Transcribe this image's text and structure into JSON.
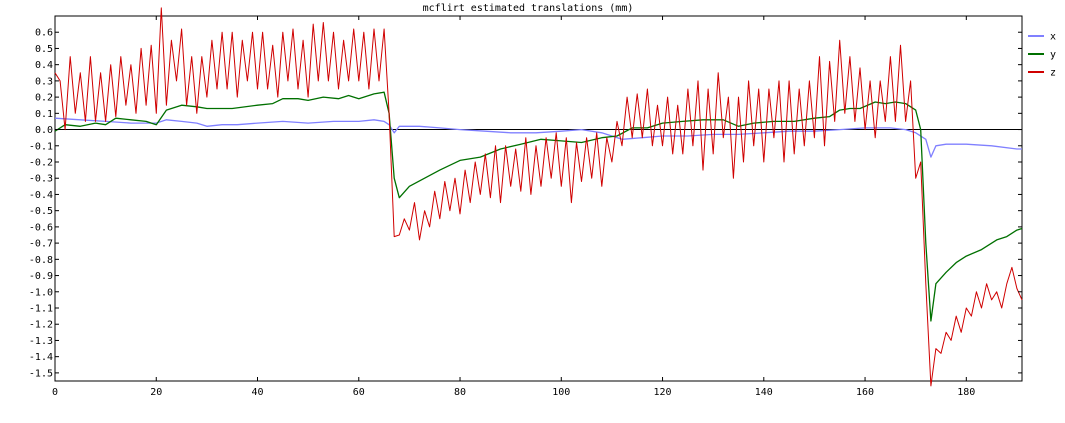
{
  "chart_data": {
    "type": "line",
    "title": "mcflirt estimated translations (mm)",
    "xlabel": "",
    "ylabel": "",
    "xlim": [
      0,
      191
    ],
    "ylim": [
      -1.55,
      0.7
    ],
    "xticks": [
      0,
      20,
      40,
      60,
      80,
      100,
      120,
      140,
      160,
      180
    ],
    "yticks": [
      0.6,
      0.5,
      0.4,
      0.3,
      0.2,
      0.1,
      0.0,
      -0.1,
      -0.2,
      -0.3,
      -0.4,
      -0.5,
      -0.6,
      -0.7,
      -0.8,
      -0.9,
      -1.0,
      -1.1,
      -1.2,
      -1.3,
      -1.4,
      -1.5
    ],
    "ytick_labels": [
      "0.6",
      "0.5",
      "0.4",
      "0.3",
      "0.2",
      "0.1",
      "0.0",
      "-0.1",
      "-0.2",
      "-0.3",
      "-0.4",
      "-0.5",
      "-0.6",
      "-0.7",
      "-0.8",
      "-0.9",
      "-1.0",
      "-1.1",
      "-1.2",
      "-1.3",
      "-1.4",
      "-1.5"
    ],
    "zero_line": true,
    "legend_position": "right",
    "series": [
      {
        "name": "x",
        "color": "#8080ff",
        "points": [
          [
            0,
            0.07
          ],
          [
            5,
            0.06
          ],
          [
            10,
            0.05
          ],
          [
            15,
            0.04
          ],
          [
            20,
            0.04
          ],
          [
            22,
            0.06
          ],
          [
            25,
            0.05
          ],
          [
            28,
            0.04
          ],
          [
            30,
            0.02
          ],
          [
            33,
            0.03
          ],
          [
            36,
            0.03
          ],
          [
            40,
            0.04
          ],
          [
            45,
            0.05
          ],
          [
            50,
            0.04
          ],
          [
            55,
            0.05
          ],
          [
            60,
            0.05
          ],
          [
            63,
            0.06
          ],
          [
            65,
            0.05
          ],
          [
            66,
            0.03
          ],
          [
            67,
            -0.02
          ],
          [
            68,
            0.02
          ],
          [
            72,
            0.02
          ],
          [
            76,
            0.01
          ],
          [
            80,
            0.0
          ],
          [
            85,
            -0.01
          ],
          [
            90,
            -0.02
          ],
          [
            95,
            -0.02
          ],
          [
            100,
            -0.01
          ],
          [
            104,
            0.0
          ],
          [
            108,
            -0.02
          ],
          [
            112,
            -0.06
          ],
          [
            116,
            -0.05
          ],
          [
            120,
            -0.04
          ],
          [
            125,
            -0.04
          ],
          [
            130,
            -0.03
          ],
          [
            135,
            -0.03
          ],
          [
            140,
            -0.02
          ],
          [
            145,
            -0.01
          ],
          [
            150,
            -0.01
          ],
          [
            155,
            0.0
          ],
          [
            160,
            0.01
          ],
          [
            165,
            0.01
          ],
          [
            168,
            0.0
          ],
          [
            170,
            -0.02
          ],
          [
            172,
            -0.06
          ],
          [
            173,
            -0.17
          ],
          [
            174,
            -0.1
          ],
          [
            176,
            -0.09
          ],
          [
            180,
            -0.09
          ],
          [
            185,
            -0.1
          ],
          [
            190,
            -0.12
          ],
          [
            191,
            -0.12
          ]
        ]
      },
      {
        "name": "y",
        "color": "#007000",
        "points": [
          [
            0,
            -0.01
          ],
          [
            2,
            0.03
          ],
          [
            5,
            0.02
          ],
          [
            8,
            0.04
          ],
          [
            10,
            0.03
          ],
          [
            12,
            0.07
          ],
          [
            15,
            0.06
          ],
          [
            18,
            0.05
          ],
          [
            20,
            0.03
          ],
          [
            22,
            0.12
          ],
          [
            25,
            0.15
          ],
          [
            28,
            0.14
          ],
          [
            30,
            0.13
          ],
          [
            35,
            0.13
          ],
          [
            40,
            0.15
          ],
          [
            43,
            0.16
          ],
          [
            45,
            0.19
          ],
          [
            48,
            0.19
          ],
          [
            50,
            0.18
          ],
          [
            53,
            0.2
          ],
          [
            56,
            0.19
          ],
          [
            58,
            0.21
          ],
          [
            60,
            0.19
          ],
          [
            63,
            0.22
          ],
          [
            65,
            0.23
          ],
          [
            66,
            0.1
          ],
          [
            67,
            -0.3
          ],
          [
            68,
            -0.42
          ],
          [
            70,
            -0.35
          ],
          [
            73,
            -0.3
          ],
          [
            76,
            -0.25
          ],
          [
            80,
            -0.19
          ],
          [
            84,
            -0.17
          ],
          [
            88,
            -0.12
          ],
          [
            92,
            -0.09
          ],
          [
            96,
            -0.06
          ],
          [
            100,
            -0.07
          ],
          [
            104,
            -0.08
          ],
          [
            108,
            -0.05
          ],
          [
            111,
            -0.04
          ],
          [
            114,
            0.01
          ],
          [
            117,
            0.01
          ],
          [
            120,
            0.04
          ],
          [
            124,
            0.05
          ],
          [
            128,
            0.06
          ],
          [
            132,
            0.06
          ],
          [
            135,
            0.02
          ],
          [
            138,
            0.04
          ],
          [
            142,
            0.05
          ],
          [
            146,
            0.05
          ],
          [
            150,
            0.07
          ],
          [
            153,
            0.08
          ],
          [
            155,
            0.12
          ],
          [
            157,
            0.13
          ],
          [
            159,
            0.13
          ],
          [
            162,
            0.17
          ],
          [
            164,
            0.16
          ],
          [
            166,
            0.17
          ],
          [
            168,
            0.16
          ],
          [
            170,
            0.12
          ],
          [
            171,
            0.0
          ],
          [
            172,
            -0.7
          ],
          [
            173,
            -1.18
          ],
          [
            174,
            -0.95
          ],
          [
            176,
            -0.88
          ],
          [
            178,
            -0.82
          ],
          [
            180,
            -0.78
          ],
          [
            183,
            -0.74
          ],
          [
            186,
            -0.68
          ],
          [
            188,
            -0.66
          ],
          [
            190,
            -0.62
          ],
          [
            191,
            -0.61
          ]
        ]
      },
      {
        "name": "z",
        "color": "#d00000",
        "points": [
          [
            0,
            0.35
          ],
          [
            1,
            0.3
          ],
          [
            2,
            0.0
          ],
          [
            3,
            0.45
          ],
          [
            4,
            0.1
          ],
          [
            5,
            0.35
          ],
          [
            6,
            0.05
          ],
          [
            7,
            0.45
          ],
          [
            8,
            0.05
          ],
          [
            9,
            0.35
          ],
          [
            10,
            0.05
          ],
          [
            11,
            0.4
          ],
          [
            12,
            0.08
          ],
          [
            13,
            0.45
          ],
          [
            14,
            0.15
          ],
          [
            15,
            0.4
          ],
          [
            16,
            0.1
          ],
          [
            17,
            0.5
          ],
          [
            18,
            0.15
          ],
          [
            19,
            0.52
          ],
          [
            20,
            0.1
          ],
          [
            21,
            0.75
          ],
          [
            22,
            0.15
          ],
          [
            23,
            0.55
          ],
          [
            24,
            0.3
          ],
          [
            25,
            0.62
          ],
          [
            26,
            0.15
          ],
          [
            27,
            0.45
          ],
          [
            28,
            0.1
          ],
          [
            29,
            0.45
          ],
          [
            30,
            0.2
          ],
          [
            31,
            0.55
          ],
          [
            32,
            0.25
          ],
          [
            33,
            0.6
          ],
          [
            34,
            0.25
          ],
          [
            35,
            0.6
          ],
          [
            36,
            0.2
          ],
          [
            37,
            0.55
          ],
          [
            38,
            0.3
          ],
          [
            39,
            0.6
          ],
          [
            40,
            0.25
          ],
          [
            41,
            0.6
          ],
          [
            42,
            0.25
          ],
          [
            43,
            0.52
          ],
          [
            44,
            0.2
          ],
          [
            45,
            0.6
          ],
          [
            46,
            0.3
          ],
          [
            47,
            0.62
          ],
          [
            48,
            0.25
          ],
          [
            49,
            0.55
          ],
          [
            50,
            0.2
          ],
          [
            51,
            0.65
          ],
          [
            52,
            0.3
          ],
          [
            53,
            0.66
          ],
          [
            54,
            0.3
          ],
          [
            55,
            0.6
          ],
          [
            56,
            0.25
          ],
          [
            57,
            0.55
          ],
          [
            58,
            0.3
          ],
          [
            59,
            0.62
          ],
          [
            60,
            0.3
          ],
          [
            61,
            0.6
          ],
          [
            62,
            0.25
          ],
          [
            63,
            0.62
          ],
          [
            64,
            0.3
          ],
          [
            65,
            0.62
          ],
          [
            66,
            0.1
          ],
          [
            67,
            -0.66
          ],
          [
            68,
            -0.65
          ],
          [
            69,
            -0.55
          ],
          [
            70,
            -0.62
          ],
          [
            71,
            -0.45
          ],
          [
            72,
            -0.68
          ],
          [
            73,
            -0.5
          ],
          [
            74,
            -0.6
          ],
          [
            75,
            -0.38
          ],
          [
            76,
            -0.55
          ],
          [
            77,
            -0.32
          ],
          [
            78,
            -0.5
          ],
          [
            79,
            -0.3
          ],
          [
            80,
            -0.52
          ],
          [
            81,
            -0.25
          ],
          [
            82,
            -0.45
          ],
          [
            83,
            -0.2
          ],
          [
            84,
            -0.4
          ],
          [
            85,
            -0.15
          ],
          [
            86,
            -0.42
          ],
          [
            87,
            -0.1
          ],
          [
            88,
            -0.45
          ],
          [
            89,
            -0.1
          ],
          [
            90,
            -0.35
          ],
          [
            91,
            -0.12
          ],
          [
            92,
            -0.38
          ],
          [
            93,
            -0.05
          ],
          [
            94,
            -0.4
          ],
          [
            95,
            -0.1
          ],
          [
            96,
            -0.35
          ],
          [
            97,
            -0.05
          ],
          [
            98,
            -0.3
          ],
          [
            99,
            -0.02
          ],
          [
            100,
            -0.35
          ],
          [
            101,
            -0.05
          ],
          [
            102,
            -0.45
          ],
          [
            103,
            -0.08
          ],
          [
            104,
            -0.32
          ],
          [
            105,
            -0.05
          ],
          [
            106,
            -0.3
          ],
          [
            107,
            -0.02
          ],
          [
            108,
            -0.35
          ],
          [
            109,
            -0.05
          ],
          [
            110,
            -0.2
          ],
          [
            111,
            0.05
          ],
          [
            112,
            -0.1
          ],
          [
            113,
            0.2
          ],
          [
            114,
            -0.05
          ],
          [
            115,
            0.22
          ],
          [
            116,
            -0.05
          ],
          [
            117,
            0.25
          ],
          [
            118,
            -0.1
          ],
          [
            119,
            0.15
          ],
          [
            120,
            -0.1
          ],
          [
            121,
            0.2
          ],
          [
            122,
            -0.15
          ],
          [
            123,
            0.15
          ],
          [
            124,
            -0.15
          ],
          [
            125,
            0.25
          ],
          [
            126,
            -0.1
          ],
          [
            127,
            0.3
          ],
          [
            128,
            -0.25
          ],
          [
            129,
            0.25
          ],
          [
            130,
            -0.15
          ],
          [
            131,
            0.35
          ],
          [
            132,
            -0.05
          ],
          [
            133,
            0.2
          ],
          [
            134,
            -0.3
          ],
          [
            135,
            0.2
          ],
          [
            136,
            -0.2
          ],
          [
            137,
            0.3
          ],
          [
            138,
            -0.1
          ],
          [
            139,
            0.25
          ],
          [
            140,
            -0.2
          ],
          [
            141,
            0.25
          ],
          [
            142,
            -0.05
          ],
          [
            143,
            0.3
          ],
          [
            144,
            -0.2
          ],
          [
            145,
            0.3
          ],
          [
            146,
            -0.15
          ],
          [
            147,
            0.25
          ],
          [
            148,
            -0.1
          ],
          [
            149,
            0.3
          ],
          [
            150,
            -0.05
          ],
          [
            151,
            0.45
          ],
          [
            152,
            -0.1
          ],
          [
            153,
            0.42
          ],
          [
            154,
            0.05
          ],
          [
            155,
            0.55
          ],
          [
            156,
            0.1
          ],
          [
            157,
            0.45
          ],
          [
            158,
            0.05
          ],
          [
            159,
            0.38
          ],
          [
            160,
            0.0
          ],
          [
            161,
            0.3
          ],
          [
            162,
            -0.05
          ],
          [
            163,
            0.3
          ],
          [
            164,
            0.05
          ],
          [
            165,
            0.45
          ],
          [
            166,
            0.05
          ],
          [
            167,
            0.52
          ],
          [
            168,
            0.05
          ],
          [
            169,
            0.3
          ],
          [
            170,
            -0.3
          ],
          [
            171,
            -0.2
          ],
          [
            172,
            -0.95
          ],
          [
            173,
            -1.58
          ],
          [
            174,
            -1.35
          ],
          [
            175,
            -1.38
          ],
          [
            176,
            -1.25
          ],
          [
            177,
            -1.3
          ],
          [
            178,
            -1.15
          ],
          [
            179,
            -1.25
          ],
          [
            180,
            -1.1
          ],
          [
            181,
            -1.15
          ],
          [
            182,
            -1.0
          ],
          [
            183,
            -1.1
          ],
          [
            184,
            -0.95
          ],
          [
            185,
            -1.05
          ],
          [
            186,
            -1.0
          ],
          [
            187,
            -1.1
          ],
          [
            188,
            -0.95
          ],
          [
            189,
            -0.85
          ],
          [
            190,
            -0.98
          ],
          [
            191,
            -1.05
          ]
        ]
      }
    ]
  }
}
